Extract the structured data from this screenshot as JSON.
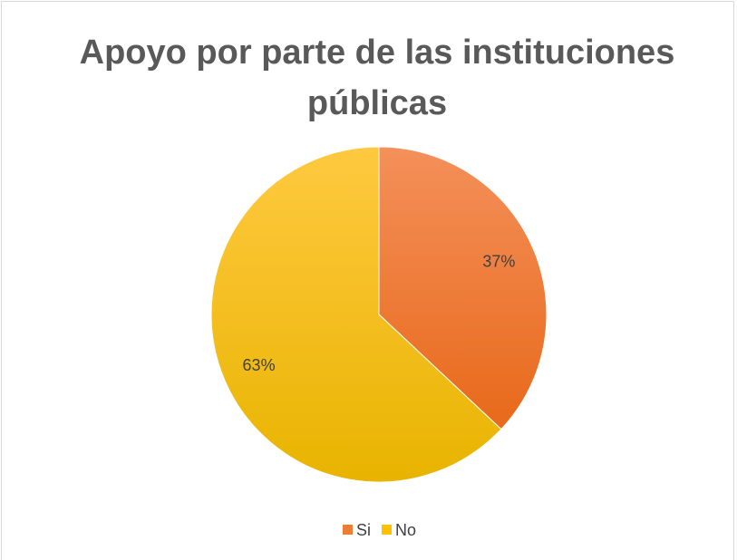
{
  "chart_data": {
    "type": "pie",
    "title": "Apoyo por parte de las instituciones públicas",
    "categories": [
      "Si",
      "No"
    ],
    "values": [
      37,
      63
    ],
    "value_labels": [
      "37%",
      "63%"
    ],
    "colors": [
      "#ed7d31",
      "#ffc000"
    ],
    "legend": "bottom"
  }
}
